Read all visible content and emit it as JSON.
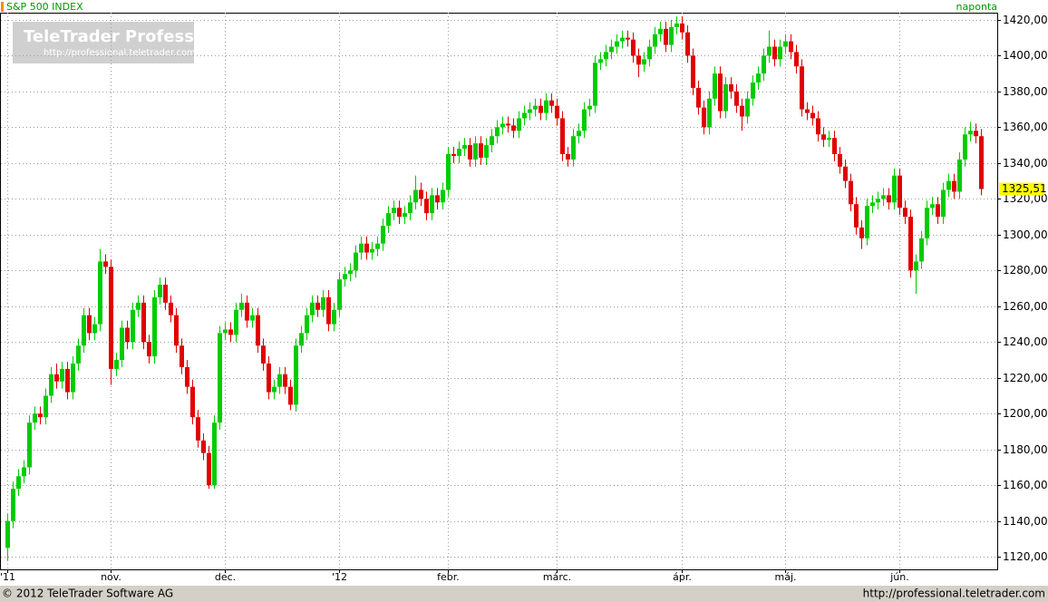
{
  "chart_data": {
    "type": "candlestick",
    "title": "S&P 500 INDEX",
    "interval": "naponta",
    "watermark": "TeleTrader Professional",
    "watermark_url": "http://professional.teletrader.com/",
    "footer_left": "© 2012 TeleTrader Software AG",
    "footer_right": "http://professional.teletrader.com",
    "last_close_label": "1325,51",
    "up_color": "#00cc00",
    "down_color": "#e00000",
    "grid": true,
    "ylim": [
      1113,
      1424
    ],
    "yticks": [
      {
        "value": 1120,
        "label": "1120,00"
      },
      {
        "value": 1140,
        "label": "1140,00"
      },
      {
        "value": 1160,
        "label": "1160,00"
      },
      {
        "value": 1180,
        "label": "1180,00"
      },
      {
        "value": 1200,
        "label": "1200,00"
      },
      {
        "value": 1220,
        "label": "1220,00"
      },
      {
        "value": 1240,
        "label": "1240,00"
      },
      {
        "value": 1260,
        "label": "1260,00"
      },
      {
        "value": 1280,
        "label": "1280,00"
      },
      {
        "value": 1300,
        "label": "1300,00"
      },
      {
        "value": 1320,
        "label": "1320,00"
      },
      {
        "value": 1340,
        "label": "1340,00"
      },
      {
        "value": 1360,
        "label": "1360,00"
      },
      {
        "value": 1380,
        "label": "1380,00"
      },
      {
        "value": 1400,
        "label": "1400,00"
      },
      {
        "value": 1420,
        "label": "1420,00"
      }
    ],
    "xticks": [
      {
        "value": 0,
        "label": "'11"
      },
      {
        "value": 19,
        "label": "nov."
      },
      {
        "value": 40,
        "label": "dec."
      },
      {
        "value": 61,
        "label": "'12"
      },
      {
        "value": 81,
        "label": "febr."
      },
      {
        "value": 101,
        "label": "márc."
      },
      {
        "value": 124,
        "label": "ápr."
      },
      {
        "value": 143,
        "label": "máj."
      },
      {
        "value": 164,
        "label": "jún."
      }
    ],
    "open": [
      1125,
      1140,
      1158,
      1165,
      1170,
      1195,
      1200,
      1198,
      1210,
      1222,
      1218,
      1225,
      1212,
      1228,
      1238,
      1255,
      1245,
      1250,
      1285,
      1282,
      1225,
      1230,
      1248,
      1240,
      1258,
      1262,
      1240,
      1232,
      1265,
      1272,
      1262,
      1255,
      1238,
      1226,
      1215,
      1198,
      1185,
      1178,
      1160,
      1195,
      1245,
      1247,
      1244,
      1258,
      1262,
      1252,
      1255,
      1238,
      1228,
      1212,
      1215,
      1222,
      1215,
      1205,
      1238,
      1245,
      1255,
      1262,
      1258,
      1265,
      1250,
      1258,
      1275,
      1278,
      1280,
      1290,
      1295,
      1290,
      1292,
      1295,
      1305,
      1312,
      1315,
      1310,
      1312,
      1318,
      1325,
      1320,
      1312,
      1322,
      1318,
      1325,
      1345,
      1344,
      1348,
      1350,
      1342,
      1351,
      1343,
      1350,
      1355,
      1360,
      1362,
      1361,
      1358,
      1365,
      1368,
      1370,
      1372,
      1368,
      1375,
      1372,
      1365,
      1345,
      1342,
      1355,
      1358,
      1370,
      1372,
      1396,
      1398,
      1402,
      1405,
      1408,
      1410,
      1409,
      1400,
      1395,
      1398,
      1405,
      1412,
      1415,
      1406,
      1416,
      1418,
      1413,
      1400,
      1382,
      1371,
      1360,
      1376,
      1390,
      1369,
      1384,
      1380,
      1372,
      1366,
      1376,
      1385,
      1390,
      1400,
      1405,
      1398,
      1405,
      1408,
      1402,
      1394,
      1370,
      1368,
      1365,
      1356,
      1353,
      1354,
      1345,
      1338,
      1330,
      1317,
      1304,
      1298,
      1316,
      1318,
      1320,
      1322,
      1318,
      1333,
      1315,
      1310,
      1280,
      1285,
      1298,
      1315,
      1317,
      1310,
      1325,
      1330,
      1324,
      1342,
      1356,
      1358,
      1355
    ],
    "high": [
      1144,
      1162,
      1169,
      1174,
      1199,
      1204,
      1204,
      1214,
      1226,
      1228,
      1229,
      1229,
      1232,
      1242,
      1259,
      1259,
      1254,
      1292,
      1289,
      1286,
      1234,
      1252,
      1252,
      1262,
      1266,
      1266,
      1244,
      1269,
      1276,
      1276,
      1266,
      1259,
      1242,
      1230,
      1219,
      1202,
      1189,
      1182,
      1199,
      1249,
      1251,
      1251,
      1262,
      1267,
      1266,
      1259,
      1259,
      1242,
      1232,
      1219,
      1226,
      1226,
      1219,
      1242,
      1249,
      1259,
      1266,
      1266,
      1269,
      1269,
      1262,
      1279,
      1282,
      1284,
      1294,
      1299,
      1299,
      1296,
      1299,
      1309,
      1316,
      1319,
      1319,
      1316,
      1322,
      1333,
      1329,
      1324,
      1326,
      1326,
      1329,
      1349,
      1349,
      1352,
      1354,
      1354,
      1355,
      1355,
      1354,
      1359,
      1364,
      1366,
      1366,
      1365,
      1369,
      1372,
      1374,
      1376,
      1376,
      1379,
      1379,
      1376,
      1369,
      1349,
      1359,
      1362,
      1374,
      1376,
      1400,
      1402,
      1406,
      1409,
      1412,
      1414,
      1414,
      1413,
      1404,
      1402,
      1409,
      1416,
      1419,
      1419,
      1420,
      1422,
      1422,
      1417,
      1404,
      1386,
      1375,
      1380,
      1394,
      1394,
      1388,
      1388,
      1384,
      1376,
      1380,
      1389,
      1394,
      1404,
      1414,
      1409,
      1409,
      1412,
      1412,
      1406,
      1398,
      1374,
      1372,
      1369,
      1360,
      1358,
      1358,
      1349,
      1342,
      1334,
      1321,
      1308,
      1320,
      1322,
      1324,
      1326,
      1326,
      1337,
      1337,
      1319,
      1314,
      1289,
      1302,
      1319,
      1321,
      1321,
      1329,
      1334,
      1334,
      1346,
      1360,
      1363,
      1362,
      1359
    ],
    "low": [
      1118,
      1136,
      1154,
      1161,
      1166,
      1191,
      1194,
      1194,
      1206,
      1214,
      1214,
      1208,
      1208,
      1224,
      1234,
      1241,
      1241,
      1246,
      1278,
      1216,
      1221,
      1226,
      1236,
      1236,
      1254,
      1236,
      1228,
      1228,
      1261,
      1258,
      1251,
      1234,
      1222,
      1211,
      1194,
      1181,
      1174,
      1158,
      1158,
      1191,
      1241,
      1240,
      1240,
      1254,
      1248,
      1248,
      1234,
      1224,
      1208,
      1208,
      1211,
      1211,
      1202,
      1201,
      1234,
      1241,
      1251,
      1254,
      1254,
      1246,
      1246,
      1254,
      1271,
      1274,
      1276,
      1286,
      1286,
      1286,
      1288,
      1291,
      1301,
      1308,
      1306,
      1306,
      1308,
      1314,
      1316,
      1308,
      1308,
      1314,
      1314,
      1321,
      1340,
      1340,
      1344,
      1338,
      1338,
      1339,
      1339,
      1346,
      1351,
      1356,
      1357,
      1354,
      1354,
      1361,
      1364,
      1366,
      1364,
      1364,
      1368,
      1361,
      1341,
      1338,
      1338,
      1351,
      1354,
      1366,
      1368,
      1392,
      1394,
      1398,
      1401,
      1404,
      1405,
      1396,
      1388,
      1391,
      1394,
      1401,
      1408,
      1402,
      1402,
      1412,
      1409,
      1396,
      1378,
      1367,
      1356,
      1356,
      1372,
      1365,
      1365,
      1376,
      1368,
      1358,
      1362,
      1372,
      1381,
      1386,
      1396,
      1394,
      1394,
      1401,
      1398,
      1390,
      1366,
      1364,
      1361,
      1352,
      1349,
      1349,
      1341,
      1334,
      1326,
      1313,
      1300,
      1292,
      1294,
      1312,
      1314,
      1316,
      1314,
      1314,
      1311,
      1306,
      1276,
      1267,
      1281,
      1294,
      1311,
      1306,
      1306,
      1321,
      1320,
      1320,
      1338,
      1352,
      1351,
      1322
    ],
    "close": [
      1140,
      1158,
      1165,
      1170,
      1195,
      1200,
      1198,
      1210,
      1222,
      1218,
      1225,
      1212,
      1228,
      1238,
      1255,
      1245,
      1250,
      1285,
      1282,
      1225,
      1230,
      1248,
      1240,
      1258,
      1262,
      1240,
      1232,
      1265,
      1272,
      1262,
      1255,
      1238,
      1226,
      1215,
      1198,
      1185,
      1178,
      1160,
      1195,
      1245,
      1247,
      1244,
      1258,
      1262,
      1252,
      1255,
      1238,
      1228,
      1212,
      1215,
      1222,
      1215,
      1205,
      1238,
      1245,
      1255,
      1262,
      1258,
      1265,
      1250,
      1258,
      1275,
      1278,
      1280,
      1290,
      1295,
      1290,
      1292,
      1295,
      1305,
      1312,
      1315,
      1310,
      1312,
      1318,
      1325,
      1320,
      1312,
      1322,
      1318,
      1325,
      1345,
      1344,
      1348,
      1350,
      1342,
      1351,
      1343,
      1350,
      1355,
      1360,
      1362,
      1361,
      1358,
      1365,
      1368,
      1370,
      1372,
      1368,
      1375,
      1372,
      1365,
      1345,
      1342,
      1355,
      1358,
      1370,
      1372,
      1396,
      1398,
      1402,
      1405,
      1408,
      1410,
      1409,
      1400,
      1395,
      1398,
      1405,
      1412,
      1415,
      1406,
      1416,
      1418,
      1413,
      1400,
      1382,
      1371,
      1360,
      1376,
      1390,
      1369,
      1384,
      1380,
      1372,
      1366,
      1376,
      1385,
      1390,
      1400,
      1405,
      1398,
      1405,
      1408,
      1402,
      1394,
      1370,
      1368,
      1365,
      1356,
      1353,
      1354,
      1345,
      1338,
      1330,
      1317,
      1304,
      1298,
      1316,
      1318,
      1320,
      1322,
      1318,
      1333,
      1315,
      1310,
      1280,
      1285,
      1298,
      1315,
      1317,
      1310,
      1325,
      1330,
      1324,
      1342,
      1356,
      1358,
      1355,
      1325.51
    ]
  }
}
